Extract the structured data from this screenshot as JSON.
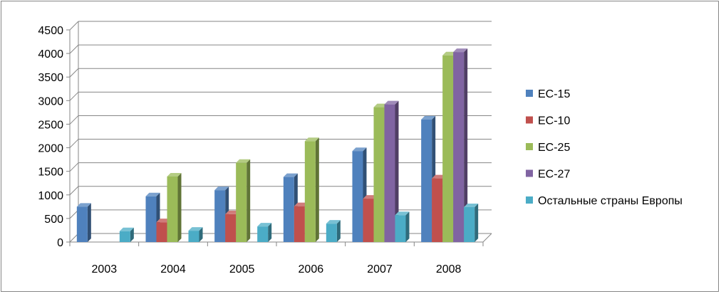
{
  "chart_data": {
    "type": "bar",
    "style": "3d-clustered-column",
    "categories": [
      "2003",
      "2004",
      "2005",
      "2006",
      "2007",
      "2008"
    ],
    "series": [
      {
        "name": "ЕС-15",
        "color": "#4F81BD",
        "values": [
          750,
          970,
          1100,
          1380,
          1930,
          2600
        ]
      },
      {
        "name": "ЕС-10",
        "color": "#C0504D",
        "values": [
          0,
          420,
          590,
          760,
          920,
          1350
        ]
      },
      {
        "name": "ЕС-25",
        "color": "#9BBB59",
        "values": [
          0,
          1390,
          1680,
          2140,
          2860,
          3960
        ]
      },
      {
        "name": "ЕС-27",
        "color": "#8064A2",
        "values": [
          0,
          0,
          0,
          0,
          2920,
          4030
        ]
      },
      {
        "name": "Остальные страны Европы",
        "color": "#4BACC6",
        "values": [
          230,
          240,
          330,
          390,
          570,
          740
        ]
      }
    ],
    "yticks": [
      "0",
      "500",
      "1000",
      "1500",
      "2000",
      "2500",
      "3000",
      "3500",
      "4000",
      "4500"
    ],
    "ylim": [
      0,
      4500
    ],
    "grid": true,
    "legend": "right"
  }
}
